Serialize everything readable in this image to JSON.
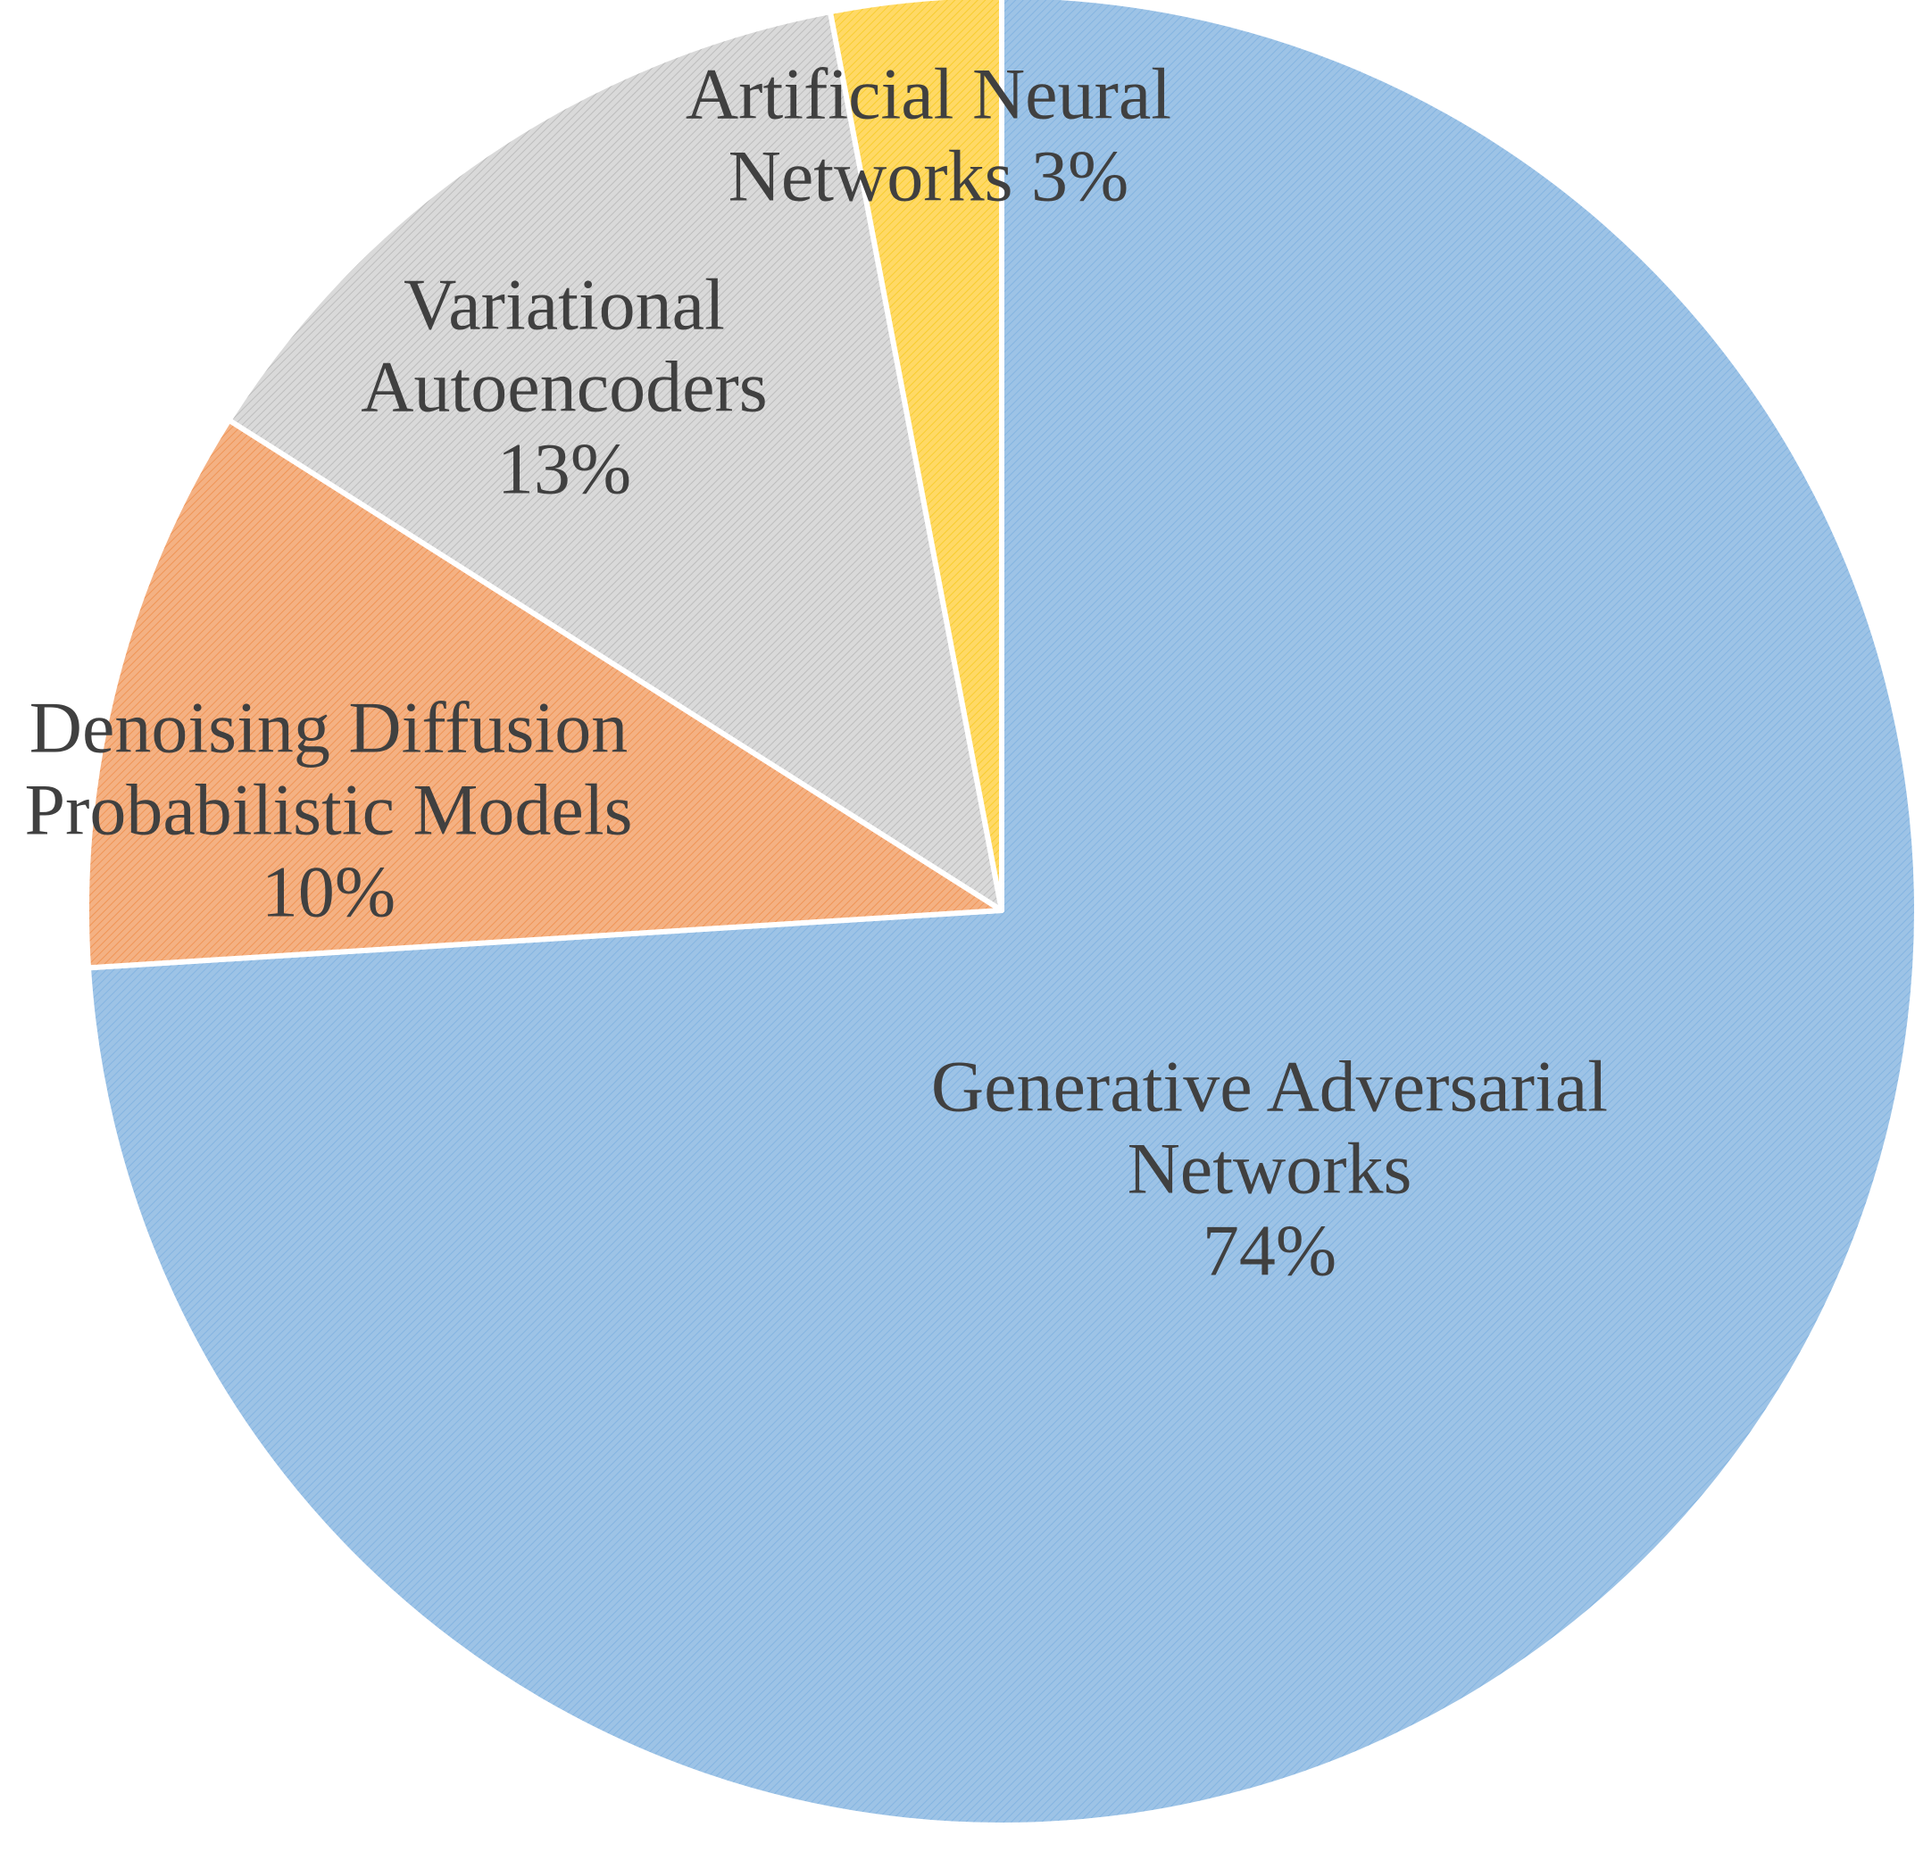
{
  "chart_data": {
    "type": "pie",
    "title": "",
    "start_angle_deg": 0,
    "direction": "clockwise",
    "slices": [
      {
        "name": "Generative Adversarial Networks",
        "value": 74,
        "label_lines": [
          "Generative Adversarial",
          "Networks",
          "74%"
        ],
        "color": "#9DC3E6",
        "edge_color": "#6FA8DC"
      },
      {
        "name": "Denoising Diffusion Probabilistic Models",
        "value": 10,
        "label_lines": [
          "Denoising Diffusion",
          "Probabilistic Models",
          "10%"
        ],
        "color": "#F4B183",
        "edge_color": "#ED7D31"
      },
      {
        "name": "Variational Autoencoders",
        "value": 13,
        "label_lines": [
          "Variational",
          "Autoencoders",
          "13%"
        ],
        "color": "#D9D9D9",
        "edge_color": "#A6A6A6"
      },
      {
        "name": "Artificial Neural Networks",
        "value": 3,
        "label_lines": [
          "Artificial Neural",
          "Networks 3%"
        ],
        "color": "#FFD966",
        "edge_color": "#F2C200"
      }
    ],
    "fill_pattern": "diagonal-hatch",
    "separator_color": "#FFFFFF"
  }
}
